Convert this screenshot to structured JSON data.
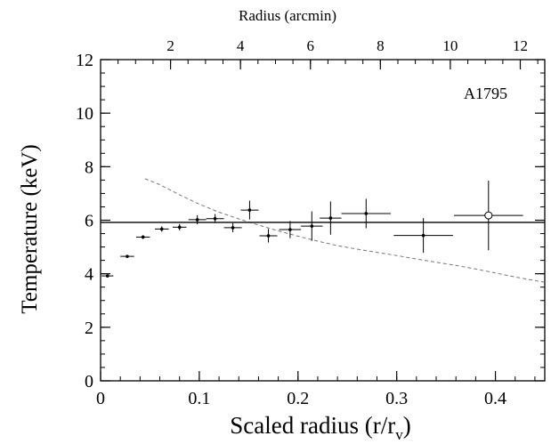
{
  "chart_data": {
    "type": "scatter",
    "xlabel": "Scaled radius (r/r",
    "xlabel_sub": "v",
    "xlabel_close": ")",
    "ylabel": "Temperature (keV)",
    "x2label": "Radius (arcmin)",
    "annotation": "A1795",
    "xlim": [
      0,
      0.45
    ],
    "ylim": [
      0,
      12
    ],
    "x2lim": [
      0,
      12.7
    ],
    "xticks": [
      0,
      0.1,
      0.2,
      0.3,
      0.4
    ],
    "xtick_labels": [
      "0",
      "0.1",
      "0.2",
      "0.3",
      "0.4"
    ],
    "yticks": [
      0,
      2,
      4,
      6,
      8,
      10,
      12
    ],
    "ytick_labels": [
      "0",
      "2",
      "4",
      "6",
      "8",
      "10",
      "12"
    ],
    "x2ticks": [
      2,
      4,
      6,
      8,
      10,
      12
    ],
    "x2tick_labels": [
      "2",
      "4",
      "6",
      "8",
      "10",
      "12"
    ],
    "mean_temperature": 5.92,
    "series": [
      {
        "points": [
          {
            "x": 0.007,
            "xerr": 0.006,
            "y": 3.92,
            "yerr": 0.04
          },
          {
            "x": 0.027,
            "xerr": 0.007,
            "y": 4.65,
            "yerr": 0.05
          },
          {
            "x": 0.043,
            "xerr": 0.007,
            "y": 5.37,
            "yerr": 0.07
          },
          {
            "x": 0.062,
            "xerr": 0.007,
            "y": 5.67,
            "yerr": 0.1
          },
          {
            "x": 0.08,
            "xerr": 0.007,
            "y": 5.74,
            "yerr": 0.12
          },
          {
            "x": 0.098,
            "xerr": 0.009,
            "y": 6.02,
            "yerr": 0.17
          },
          {
            "x": 0.116,
            "xerr": 0.009,
            "y": 6.06,
            "yerr": 0.17
          },
          {
            "x": 0.134,
            "xerr": 0.009,
            "y": 5.72,
            "yerr": 0.17
          },
          {
            "x": 0.151,
            "xerr": 0.009,
            "y": 6.38,
            "yerr": 0.35
          },
          {
            "x": 0.17,
            "xerr": 0.009,
            "y": 5.42,
            "yerr": 0.25
          },
          {
            "x": 0.192,
            "xerr": 0.011,
            "y": 5.65,
            "yerr": 0.32
          },
          {
            "x": 0.214,
            "xerr": 0.011,
            "y": 5.78,
            "yerr": 0.55
          },
          {
            "x": 0.233,
            "xerr": 0.011,
            "y": 6.08,
            "yerr": 0.62
          },
          {
            "x": 0.269,
            "xerr": 0.025,
            "y": 6.25,
            "yerr": 0.55
          },
          {
            "x": 0.327,
            "xerr": 0.03,
            "y": 5.43,
            "yerr": 0.65
          },
          {
            "x": 0.393,
            "xerr": 0.035,
            "y": 6.18,
            "yerr": 1.3,
            "marker": "open-circle"
          }
        ]
      }
    ],
    "dashed_curve": {
      "x": [
        0.045,
        0.06,
        0.08,
        0.1,
        0.12,
        0.14,
        0.16,
        0.18,
        0.2,
        0.22,
        0.24,
        0.26,
        0.28,
        0.3,
        0.32,
        0.34,
        0.36,
        0.38,
        0.4,
        0.42,
        0.45
      ],
      "y": [
        7.55,
        7.33,
        6.95,
        6.6,
        6.3,
        6.05,
        5.82,
        5.6,
        5.4,
        5.22,
        5.05,
        4.92,
        4.8,
        4.68,
        4.55,
        4.43,
        4.31,
        4.18,
        4.03,
        3.88,
        3.68
      ]
    }
  }
}
